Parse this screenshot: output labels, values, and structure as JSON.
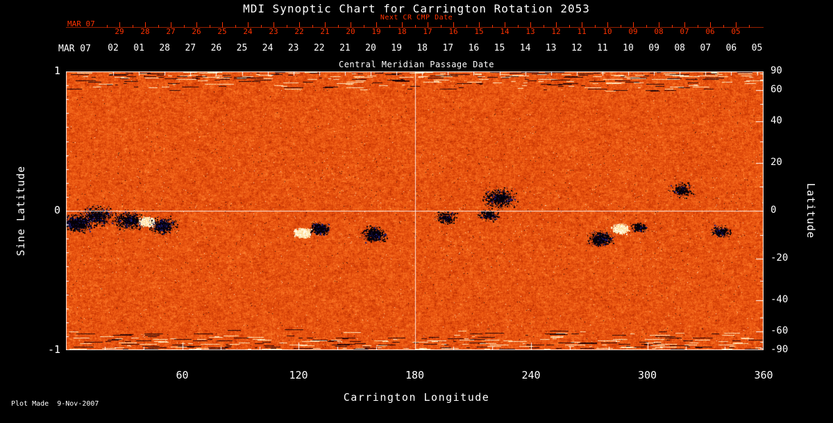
{
  "title": "MDI Synoptic Chart for Carrington Rotation 2053",
  "plot_made": "Plot Made  9-Nov-2007",
  "colors": {
    "background": "#000000",
    "foreground": "#ffffff",
    "next_cr_axis_red": "#ff3200",
    "gridline": "#ffffff"
  },
  "axes": {
    "top_red": {
      "label": "Next CR CMP Date",
      "month_label": "MAR 07",
      "tick_labels": [
        "29",
        "28",
        "27",
        "26",
        "25",
        "24",
        "23",
        "22",
        "21",
        "20",
        "19",
        "18",
        "17",
        "16",
        "15",
        "14",
        "13",
        "12",
        "11",
        "10",
        "09",
        "08",
        "07",
        "06",
        "05"
      ]
    },
    "top_white": {
      "label": "Central Meridian Passage Date",
      "month_label": "MAR 07",
      "tick_labels": [
        "02",
        "01",
        "28",
        "27",
        "26",
        "25",
        "24",
        "23",
        "22",
        "21",
        "20",
        "19",
        "18",
        "17",
        "16",
        "15",
        "14",
        "13",
        "12",
        "11",
        "10",
        "09",
        "08",
        "07",
        "06",
        "05"
      ]
    },
    "bottom": {
      "label": "Carrington Longitude",
      "tick_labels": [
        "60",
        "120",
        "180",
        "240",
        "300",
        "360"
      ]
    },
    "left": {
      "label": "Sine Latitude",
      "tick_labels": [
        "1",
        "0",
        "-1"
      ]
    },
    "right": {
      "label": "Latitude",
      "tick_labels": [
        "90",
        "60",
        "40",
        "20",
        "0",
        "-20",
        "-40",
        "-60",
        "-90"
      ]
    }
  },
  "chart_data": {
    "type": "heatmap",
    "title": "MDI Synoptic Chart for Carrington Rotation 2053",
    "xlabel": "Carrington Longitude",
    "ylabel_left": "Sine Latitude",
    "ylabel_right": "Latitude",
    "xlim": [
      0,
      360
    ],
    "ylim_sine_latitude": [
      -1,
      1
    ],
    "x_ticks": [
      60,
      120,
      180,
      240,
      300,
      360
    ],
    "left_ticks_sine_latitude": [
      1,
      0,
      -1
    ],
    "right_ticks_latitude": [
      90,
      60,
      40,
      20,
      0,
      -20,
      -40,
      -60,
      -90
    ],
    "gridlines": {
      "longitude": [
        180
      ],
      "sine_latitude": [
        0
      ]
    },
    "colormap_description": "solar magnetogram noise field: weak field = red/orange granulation, strong positive flux = white/yellow, strong negative flux = black/dark blue; noisy white/black horizontal streaks near both poles",
    "cmp_date_axis": {
      "label": "Central Meridian Passage Date",
      "month_year": "MAR 07",
      "day_labels": [
        "02",
        "01",
        "28",
        "27",
        "26",
        "25",
        "24",
        "23",
        "22",
        "21",
        "20",
        "19",
        "18",
        "17",
        "16",
        "15",
        "14",
        "13",
        "12",
        "11",
        "10",
        "09",
        "08",
        "07",
        "06",
        "05"
      ]
    },
    "next_cr_cmp_date_axis": {
      "label": "Next CR CMP Date",
      "month_year": "MAR 07",
      "day_labels": [
        "29",
        "28",
        "27",
        "26",
        "25",
        "24",
        "23",
        "22",
        "21",
        "20",
        "19",
        "18",
        "17",
        "16",
        "15",
        "14",
        "13",
        "12",
        "11",
        "10",
        "09",
        "08",
        "07",
        "06",
        "05"
      ]
    },
    "active_regions": [
      {
        "longitude": 6,
        "sine_latitude": -0.09,
        "polarity": "negative",
        "extent_deg": 9,
        "strength": "strong"
      },
      {
        "longitude": 16,
        "sine_latitude": -0.04,
        "polarity": "negative",
        "extent_deg": 12,
        "strength": "moderate"
      },
      {
        "longitude": 33,
        "sine_latitude": -0.07,
        "polarity": "negative",
        "extent_deg": 10,
        "strength": "moderate"
      },
      {
        "longitude": 42,
        "sine_latitude": -0.08,
        "polarity": "positive",
        "extent_deg": 5,
        "strength": "strong"
      },
      {
        "longitude": 50,
        "sine_latitude": -0.11,
        "polarity": "negative",
        "extent_deg": 9,
        "strength": "moderate"
      },
      {
        "longitude": 122,
        "sine_latitude": -0.16,
        "polarity": "positive",
        "extent_deg": 5,
        "strength": "strong"
      },
      {
        "longitude": 131,
        "sine_latitude": -0.13,
        "polarity": "negative",
        "extent_deg": 6,
        "strength": "moderate"
      },
      {
        "longitude": 159,
        "sine_latitude": -0.17,
        "polarity": "negative",
        "extent_deg": 8,
        "strength": "moderate"
      },
      {
        "longitude": 196,
        "sine_latitude": -0.05,
        "polarity": "negative",
        "extent_deg": 7,
        "strength": "weak"
      },
      {
        "longitude": 224,
        "sine_latitude": 0.09,
        "polarity": "negative",
        "extent_deg": 11,
        "strength": "moderate"
      },
      {
        "longitude": 218,
        "sine_latitude": -0.03,
        "polarity": "negative",
        "extent_deg": 6,
        "strength": "weak"
      },
      {
        "longitude": 276,
        "sine_latitude": -0.2,
        "polarity": "negative",
        "extent_deg": 8,
        "strength": "moderate"
      },
      {
        "longitude": 286,
        "sine_latitude": -0.13,
        "polarity": "positive",
        "extent_deg": 5,
        "strength": "strong"
      },
      {
        "longitude": 296,
        "sine_latitude": -0.12,
        "polarity": "negative",
        "extent_deg": 5,
        "strength": "weak"
      },
      {
        "longitude": 318,
        "sine_latitude": 0.15,
        "polarity": "negative",
        "extent_deg": 8,
        "strength": "weak"
      },
      {
        "longitude": 338,
        "sine_latitude": -0.15,
        "polarity": "negative",
        "extent_deg": 7,
        "strength": "weak"
      }
    ]
  }
}
